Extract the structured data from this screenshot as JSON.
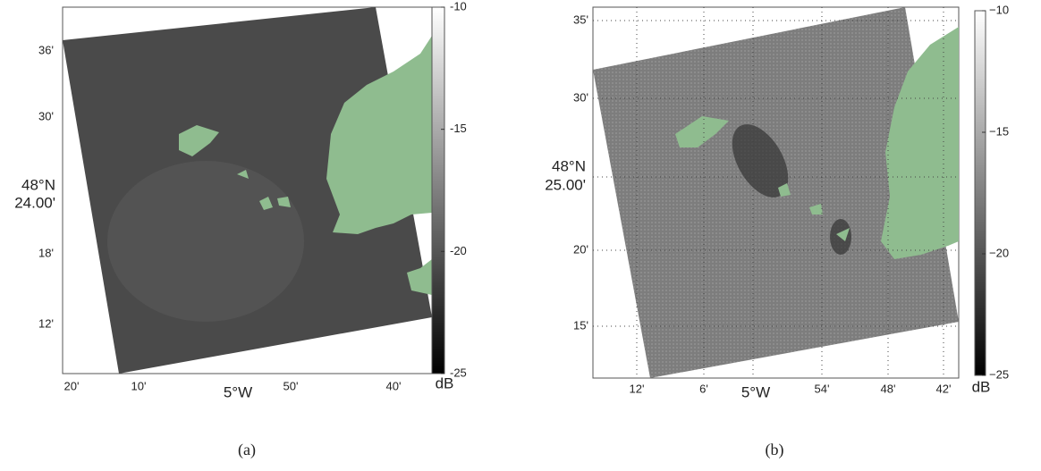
{
  "panels": [
    {
      "caption": "(a)",
      "y_labels": [
        "36'",
        "30'",
        "18'",
        "12'"
      ],
      "lat_label": [
        "48°N",
        "24.00'"
      ],
      "x_labels": [
        "20'",
        "10'",
        "50'",
        "40'"
      ],
      "lon_label": "5°W",
      "colorbar": {
        "lim": [
          -25,
          -10
        ],
        "ticks": [
          -10,
          -15,
          -20,
          -25
        ],
        "unit": "dB"
      }
    },
    {
      "caption": "(b)",
      "y_labels": [
        "35'",
        "30'",
        "20'",
        "15'"
      ],
      "lat_label": [
        "48°N",
        "25.00'"
      ],
      "x_labels": [
        "12'",
        "6'",
        "54'",
        "48'",
        "42'"
      ],
      "lon_label": "5°W",
      "colorbar": {
        "lim": [
          -25,
          -10
        ],
        "ticks": [
          {
            "value": -10,
            "label": "−10"
          },
          {
            "value": -15,
            "label": "−15"
          },
          {
            "value": -20,
            "label": "−20"
          },
          {
            "value": -25,
            "label": "−25"
          }
        ],
        "unit": "dB"
      }
    }
  ]
}
